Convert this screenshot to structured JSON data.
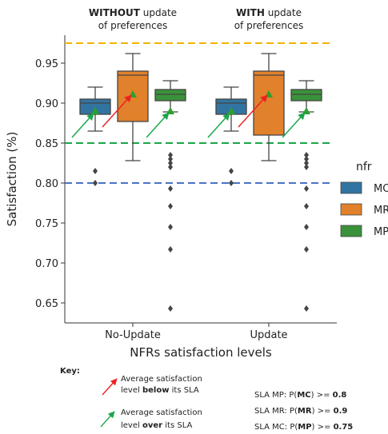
{
  "chart_data": {
    "type": "box",
    "title": "",
    "xlabel": "NFRs satisfaction levels",
    "ylabel": "Satisfaction (%)",
    "ylim": [
      0.625,
      0.985
    ],
    "yticks": [
      0.65,
      0.7,
      0.75,
      0.8,
      0.85,
      0.9,
      0.95
    ],
    "ytick_labels": [
      "0.65",
      "0.70",
      "0.75",
      "0.80",
      "0.85",
      "0.90",
      "0.95"
    ],
    "categories": [
      "No-Update",
      "Update"
    ],
    "group_titles": [
      {
        "bold": "WITHOUT",
        "rest": " update",
        "line2": "of preferences"
      },
      {
        "bold": "WITH",
        "rest": " update",
        "line2": "of preferences"
      }
    ],
    "legend": {
      "title": "nfr",
      "entries": [
        {
          "label": "MC",
          "color": "#3274a1"
        },
        {
          "label": "MR",
          "color": "#e1812c"
        },
        {
          "label": "MP",
          "color": "#3a923a"
        }
      ],
      "placement": "right"
    },
    "reference_lines": [
      {
        "y": 0.975,
        "color": "#f0b400"
      },
      {
        "y": 0.85,
        "color": "#1aa64a"
      },
      {
        "y": 0.8,
        "color": "#4a72c4"
      }
    ],
    "series": [
      {
        "name": "MC",
        "color": "#3274a1",
        "boxes": [
          {
            "whisker_low": 0.865,
            "q1": 0.886,
            "median": 0.9,
            "q3": 0.905,
            "whisker_high": 0.92,
            "mean": 0.89,
            "outliers": [
              0.815,
              0.8
            ]
          },
          {
            "whisker_low": 0.865,
            "q1": 0.886,
            "median": 0.9,
            "q3": 0.905,
            "whisker_high": 0.92,
            "mean": 0.89,
            "outliers": [
              0.815,
              0.8
            ]
          }
        ]
      },
      {
        "name": "MR",
        "color": "#e1812c",
        "boxes": [
          {
            "whisker_low": 0.828,
            "q1": 0.877,
            "median": 0.935,
            "q3": 0.94,
            "whisker_high": 0.962,
            "mean": 0.911,
            "outliers": []
          },
          {
            "whisker_low": 0.828,
            "q1": 0.86,
            "median": 0.935,
            "q3": 0.94,
            "whisker_high": 0.962,
            "mean": 0.911,
            "outliers": []
          }
        ]
      },
      {
        "name": "MP",
        "color": "#3a923a",
        "boxes": [
          {
            "whisker_low": 0.889,
            "q1": 0.903,
            "median": 0.911,
            "q3": 0.917,
            "whisker_high": 0.928,
            "mean": 0.89,
            "outliers": [
              0.835,
              0.83,
              0.825,
              0.82,
              0.793,
              0.771,
              0.745,
              0.717,
              0.643
            ]
          },
          {
            "whisker_low": 0.889,
            "q1": 0.903,
            "median": 0.911,
            "q3": 0.917,
            "whisker_high": 0.928,
            "mean": 0.89,
            "outliers": [
              0.835,
              0.83,
              0.825,
              0.82,
              0.793,
              0.771,
              0.745,
              0.717,
              0.643
            ]
          }
        ]
      }
    ],
    "annotation_arrows": [
      {
        "color": "#ee2222",
        "to": {
          "category": 0,
          "series": 1,
          "y": 0.91
        },
        "from_y": 0.87
      },
      {
        "color": "#1aa64a",
        "to": {
          "category": 0,
          "series": 0,
          "y": 0.887
        },
        "from_y": 0.857
      },
      {
        "color": "#1aa64a",
        "to": {
          "category": 0,
          "series": 2,
          "y": 0.888
        },
        "from_y": 0.857
      },
      {
        "color": "#ee2222",
        "to": {
          "category": 1,
          "series": 1,
          "y": 0.91
        },
        "from_y": 0.87
      },
      {
        "color": "#1aa64a",
        "to": {
          "category": 1,
          "series": 0,
          "y": 0.887
        },
        "from_y": 0.857
      },
      {
        "color": "#1aa64a",
        "to": {
          "category": 1,
          "series": 2,
          "y": 0.888
        },
        "from_y": 0.857
      }
    ]
  },
  "key": {
    "title": "Key:",
    "red_arrow": {
      "color": "#ee2222",
      "line1": "Average satisfaction",
      "line2_pre": "level ",
      "line2_bold": "below",
      "line2_post": " its SLA"
    },
    "green_arrow": {
      "color": "#1aa64a",
      "line1": "Average satisfaction",
      "line2_pre": "level ",
      "line2_bold": "over",
      "line2_post": " its SLA"
    },
    "sla": [
      {
        "pre": "SLA MP: P(",
        "bold1": "MC",
        "mid": ") >= ",
        "bold2": "0.8"
      },
      {
        "pre": "SLA MR: P(",
        "bold1": "MR",
        "mid": ") >= ",
        "bold2": "0.9"
      },
      {
        "pre": "SLA MC: P(",
        "bold1": "MP",
        "mid": ") >= ",
        "bold2": "0.75"
      }
    ]
  }
}
